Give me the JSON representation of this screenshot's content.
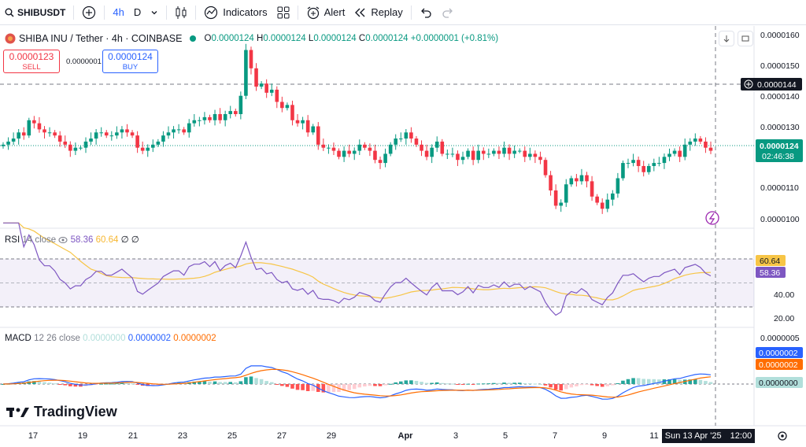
{
  "toolbar": {
    "symbol": "SHIBUSDT",
    "interval_active": "4h",
    "interval_alt": "D",
    "indicators": "Indicators",
    "alert": "Alert",
    "replay": "Replay"
  },
  "legend": {
    "title": "SHIBA INU / Tether · 4h · COINBASE",
    "o_label": "O",
    "o": "0.0000124",
    "h_label": "H",
    "h": "0.0000124",
    "l_label": "L",
    "l": "0.0000124",
    "c_label": "C",
    "c": "0.0000124",
    "change": "+0.0000001 (+0.81%)"
  },
  "trade": {
    "sell_value": "0.0000123",
    "sell_label": "SELL",
    "spread": "0.0000001",
    "buy_value": "0.0000124",
    "buy_label": "BUY"
  },
  "price_axis": {
    "ticks": [
      "0.0000160",
      "0.0000150",
      "0.0000140",
      "0.0000130",
      "0.0000110",
      "0.0000100"
    ],
    "crosshair_price": "0.0000144",
    "current_price": "0.0000124",
    "countdown": "02:46:38"
  },
  "rsi": {
    "label": "RSI",
    "params": "14 close",
    "value": "58.36",
    "ma_value": "60.64",
    "extra": "∅ ∅",
    "axis_ticks": [
      "40.00",
      "20.00"
    ],
    "ma_box": "60.64",
    "value_box": "58.36"
  },
  "macd": {
    "label": "MACD",
    "params": "12 26 close",
    "hist_value": "0.0000000",
    "macd_value": "0.0000002",
    "signal_value": "0.0000002",
    "axis_top": "0.0000005",
    "macd_box": "0.0000002",
    "signal_box": "0.0000002",
    "hist_box": "0.0000000"
  },
  "time_axis": {
    "labels": [
      "17",
      "19",
      "21",
      "23",
      "25",
      "27",
      "29",
      "Apr",
      "3",
      "5",
      "7",
      "9",
      "11"
    ],
    "crosshair_date": "Sun 13 Apr '25",
    "crosshair_time": "12:00"
  },
  "branding": {
    "logo_text": "TradingView"
  },
  "colors": {
    "up": "#089981",
    "down": "#f23645",
    "rsi": "#7e57c2",
    "rsi_ma": "#f7c546",
    "macd": "#2962ff",
    "signal": "#ff6d00",
    "accent": "#2962ff"
  },
  "chart_data": {
    "type": "candlestick",
    "title": "SHIBA INU / Tether · 4h · COINBASE",
    "x_labels": [
      "17",
      "19",
      "21",
      "23",
      "25",
      "27",
      "29",
      "Apr",
      "3",
      "5",
      "7",
      "9",
      "11"
    ],
    "ylim": [
      9.8e-06,
      1.63e-05
    ],
    "close": [
      12.5,
      12.6,
      12.7,
      12.9,
      12.8,
      13.3,
      13.2,
      13.0,
      12.9,
      12.9,
      12.8,
      12.6,
      12.5,
      12.3,
      12.4,
      12.4,
      12.6,
      12.7,
      12.9,
      12.9,
      12.8,
      12.8,
      12.9,
      13.0,
      12.9,
      12.8,
      12.4,
      12.3,
      12.4,
      12.5,
      12.6,
      12.8,
      12.9,
      13.0,
      13.0,
      12.9,
      13.2,
      13.3,
      13.3,
      13.4,
      13.3,
      13.5,
      13.3,
      13.5,
      13.6,
      13.5,
      14.1,
      15.6,
      15.0,
      14.4,
      14.5,
      14.2,
      14.3,
      13.9,
      13.7,
      13.8,
      13.3,
      13.2,
      13.3,
      12.9,
      13.1,
      12.5,
      12.4,
      12.4,
      12.3,
      12.1,
      12.3,
      12.2,
      12.3,
      12.5,
      12.4,
      12.3,
      12.0,
      11.9,
      12.2,
      12.5,
      12.7,
      12.7,
      12.9,
      12.7,
      12.5,
      12.3,
      12.1,
      12.4,
      12.6,
      12.2,
      12.2,
      12.2,
      12.0,
      12.1,
      12.3,
      12.0,
      12.3,
      12.2,
      12.2,
      12.3,
      12.2,
      12.4,
      12.2,
      12.3,
      12.3,
      12.1,
      12.2,
      12.1,
      12.0,
      11.5,
      11.0,
      10.5,
      10.6,
      11.2,
      11.4,
      11.3,
      11.5,
      11.3,
      10.8,
      10.6,
      10.4,
      10.7,
      10.9,
      11.4,
      11.9,
      11.9,
      12.0,
      11.8,
      11.6,
      11.8,
      11.9,
      11.9,
      12.1,
      12.2,
      12.3,
      12.1,
      12.5,
      12.6,
      12.7,
      12.6,
      12.4,
      12.3
    ]
  }
}
